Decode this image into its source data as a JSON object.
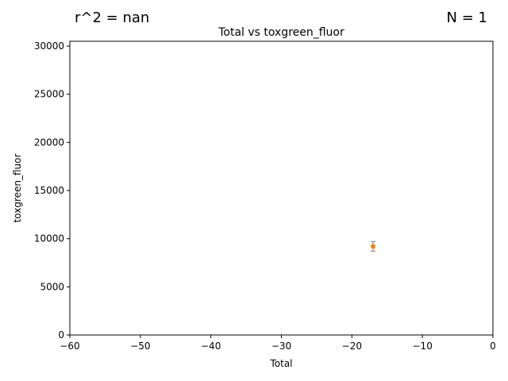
{
  "annotations": {
    "left_text": "r^2 = nan",
    "right_text": "N = 1"
  },
  "chart_data": {
    "type": "scatter",
    "title": "Total vs toxgreen_fluor",
    "xlabel": "Total",
    "ylabel": "toxgreen_fluor",
    "xlim": [
      -60,
      0
    ],
    "ylim": [
      0,
      30500
    ],
    "xticks": [
      -60,
      -50,
      -40,
      -30,
      -20,
      -10,
      0
    ],
    "xtick_labels": [
      "−60",
      "−50",
      "−40",
      "−30",
      "−20",
      "−10",
      "0"
    ],
    "yticks": [
      0,
      5000,
      10000,
      15000,
      20000,
      25000,
      30000
    ],
    "ytick_labels": [
      "0",
      "5000",
      "10000",
      "15000",
      "20000",
      "25000",
      "30000"
    ],
    "grid": false,
    "points": [
      {
        "x": -17,
        "y": 9200,
        "yerr": 500,
        "color": "#ff7f0e"
      }
    ],
    "errorbar_color": "#7f7f7f"
  }
}
